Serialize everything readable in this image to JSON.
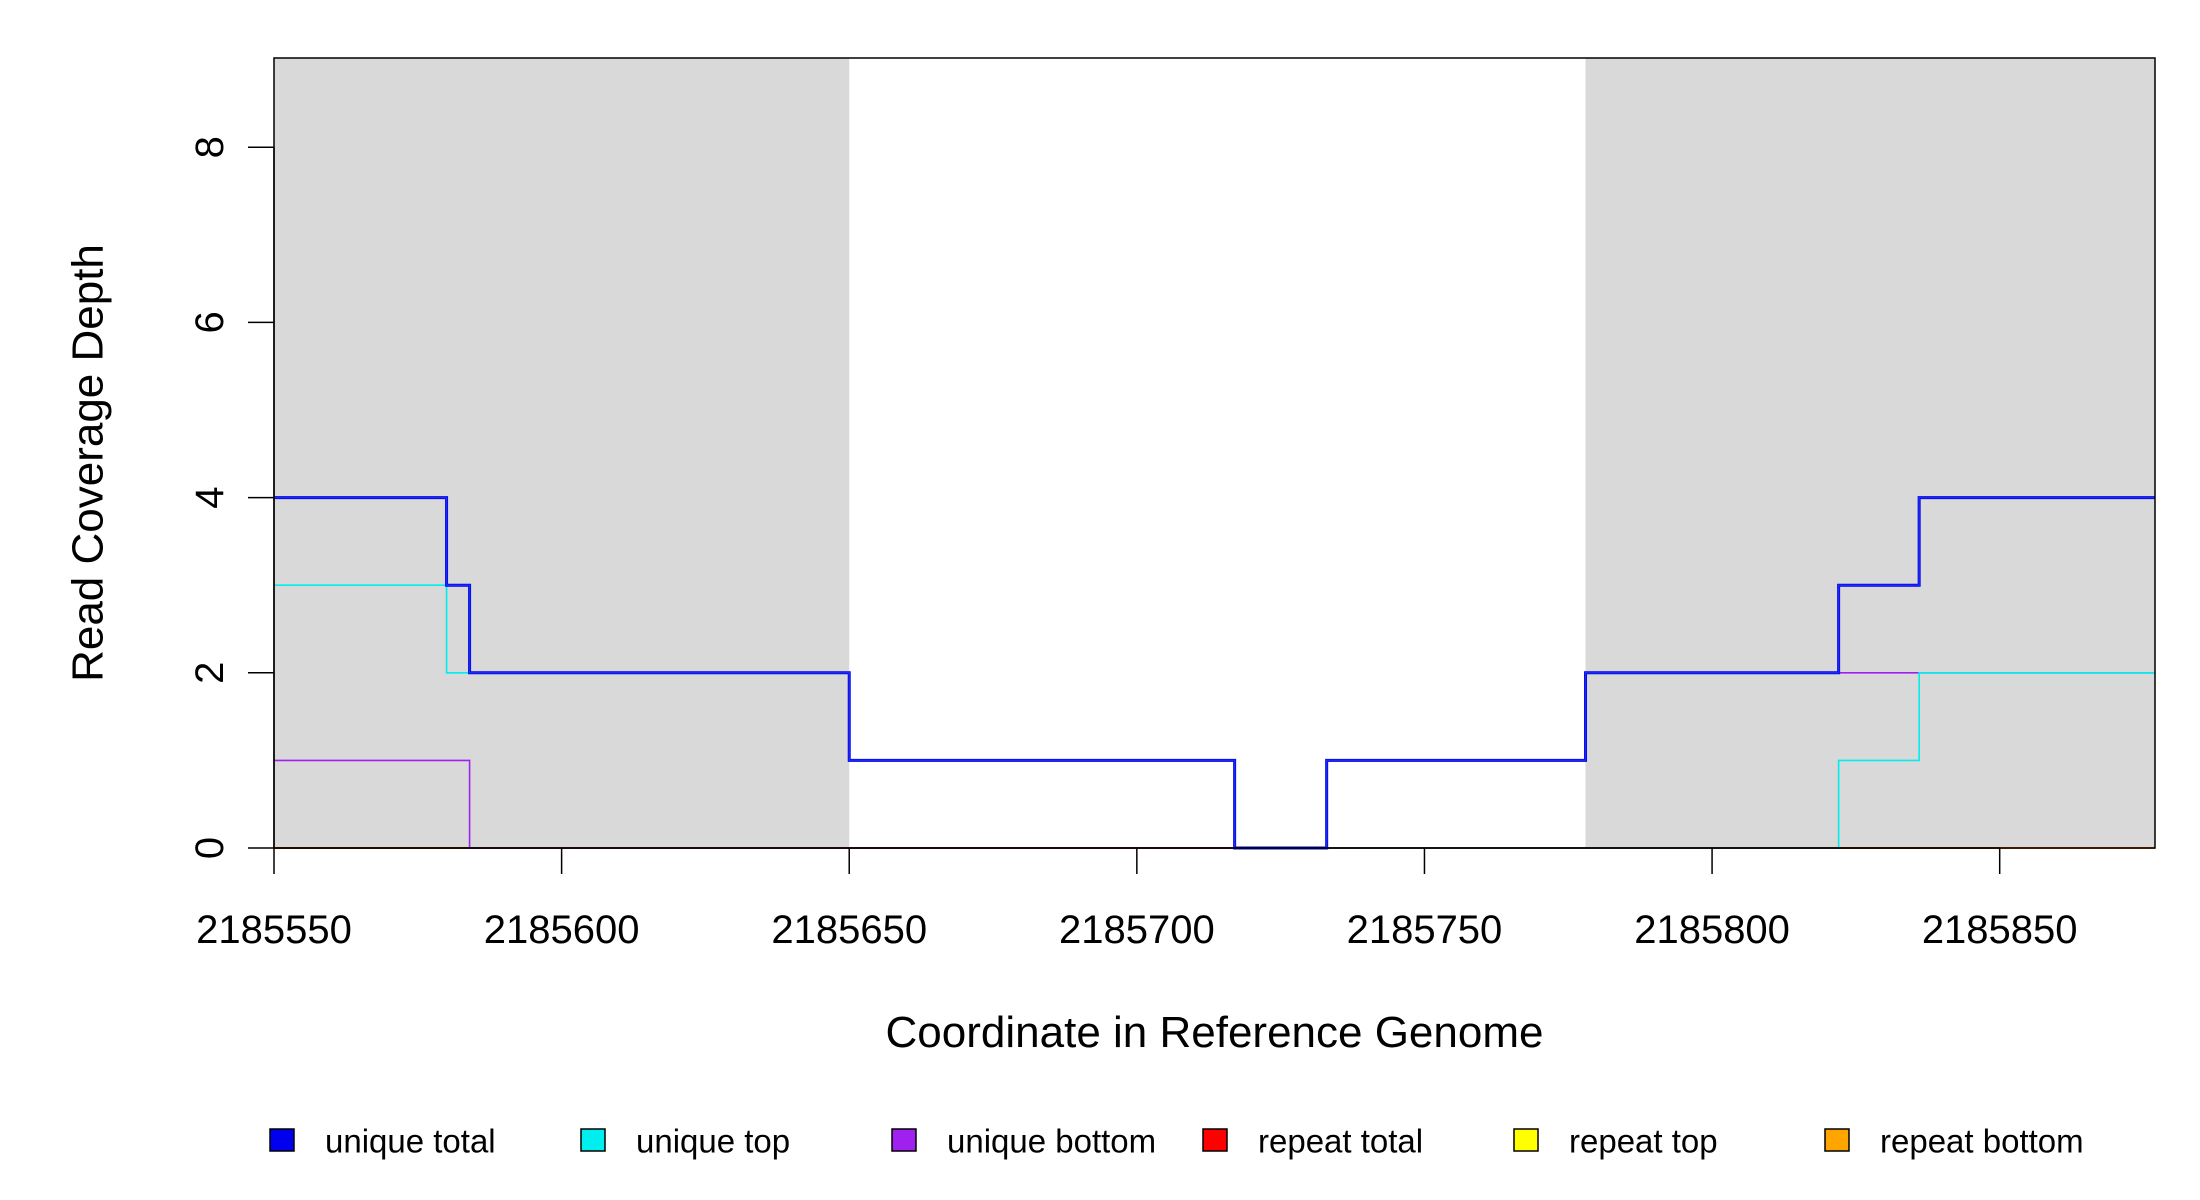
{
  "chart_data": {
    "type": "line",
    "xlabel": "Coordinate in Reference Genome",
    "ylabel": "Read Coverage Depth",
    "xlim": [
      2185550,
      2185877
    ],
    "ylim": [
      0,
      9
    ],
    "x_ticks": [
      2185550,
      2185600,
      2185650,
      2185700,
      2185750,
      2185800,
      2185850
    ],
    "y_ticks": [
      0,
      2,
      4,
      6,
      8
    ],
    "shaded_regions": [
      {
        "x0": 2185550,
        "x1": 2185650,
        "color": "#d9d9d9"
      },
      {
        "x0": 2185778,
        "x1": 2185877,
        "color": "#d9d9d9"
      }
    ],
    "series": [
      {
        "name": "unique total",
        "color": "#0000ee",
        "steps": [
          [
            2185550,
            4
          ],
          [
            2185580,
            3
          ],
          [
            2185584,
            2
          ],
          [
            2185650,
            1
          ],
          [
            2185717,
            0
          ],
          [
            2185733,
            1
          ],
          [
            2185778,
            2
          ],
          [
            2185822,
            3
          ],
          [
            2185836,
            4
          ],
          [
            2185877,
            4
          ]
        ]
      },
      {
        "name": "unique top",
        "color": "#00eeee",
        "steps": [
          [
            2185550,
            3
          ],
          [
            2185580,
            2
          ],
          [
            2185650,
            1
          ],
          [
            2185717,
            0
          ],
          [
            2185822,
            1
          ],
          [
            2185836,
            2
          ],
          [
            2185877,
            2
          ]
        ]
      },
      {
        "name": "unique bottom",
        "color": "#a020f0",
        "steps": [
          [
            2185550,
            1
          ],
          [
            2185584,
            0
          ],
          [
            2185733,
            1
          ],
          [
            2185778,
            2
          ],
          [
            2185877,
            2
          ]
        ]
      },
      {
        "name": "repeat total",
        "color": "#ff0000",
        "steps": [
          [
            2185550,
            0
          ],
          [
            2185877,
            0
          ]
        ]
      },
      {
        "name": "repeat top",
        "color": "#ffff00",
        "steps": [
          [
            2185550,
            0
          ],
          [
            2185877,
            0
          ]
        ]
      },
      {
        "name": "repeat bottom",
        "color": "#ffa500",
        "steps": [
          [
            2185550,
            0
          ],
          [
            2185877,
            0
          ]
        ]
      }
    ],
    "legend": {
      "placement": "bottom",
      "entries": [
        {
          "label": "unique total",
          "color": "#0000ee"
        },
        {
          "label": "unique top",
          "color": "#00eeee"
        },
        {
          "label": "unique bottom",
          "color": "#a020f0"
        },
        {
          "label": "repeat total",
          "color": "#ff0000"
        },
        {
          "label": "repeat top",
          "color": "#ffff00"
        },
        {
          "label": "repeat bottom",
          "color": "#ffa500"
        }
      ]
    }
  }
}
